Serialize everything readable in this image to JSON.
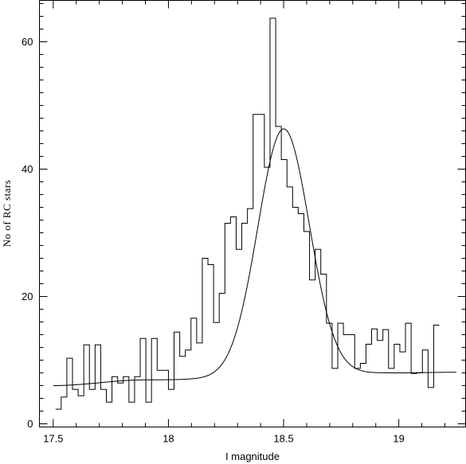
{
  "chart_data": {
    "type": "histogram",
    "xlabel": "I magnitude",
    "ylabel": "No of RC stars",
    "xlim": [
      17.44,
      19.29
    ],
    "ylim": [
      -0.5,
      66.5
    ],
    "grid": false,
    "xticks": [
      17.5,
      18,
      18.5,
      19
    ],
    "xtick_labels": [
      "17.5",
      "18",
      "18.5",
      "19"
    ],
    "yticks": [
      0,
      20,
      40,
      60
    ],
    "ytick_labels": [
      "0",
      "20",
      "40",
      "60"
    ],
    "bin_start": 17.51,
    "bin_width": 0.0245,
    "counts": [
      2.3,
      4.2,
      10.3,
      5.4,
      4.4,
      12.4,
      5.4,
      12.4,
      5.4,
      3.4,
      7.4,
      6.4,
      7.4,
      3.4,
      7.4,
      13.4,
      3.4,
      13.4,
      8.4,
      8.4,
      5.4,
      14.4,
      10.6,
      11.6,
      16.6,
      12.7,
      26.0,
      25.0,
      15.9,
      20.5,
      31.5,
      32.5,
      27.4,
      31.5,
      33.8,
      48.6,
      48.6,
      40.3,
      63.7,
      46.7,
      41.5,
      37.2,
      34.0,
      33.0,
      30.2,
      22.6,
      27.4,
      23.5,
      15.8,
      8.7,
      15.8,
      14.0,
      14.0,
      8.7,
      9.5,
      12.5,
      14.9,
      13.1,
      14.8,
      8.7,
      12.5,
      11.3,
      15.8,
      7.9,
      8.0,
      11.6,
      5.7,
      15.5
    ],
    "fit": {
      "type": "gaussian_plus_background",
      "amplitude": 38.8,
      "center": 18.5,
      "sigma": 0.112,
      "background": [
        6.0,
        6.9,
        8.0,
        8.1
      ],
      "background_x": [
        17.5,
        17.9,
        19.0,
        19.25
      ]
    }
  }
}
